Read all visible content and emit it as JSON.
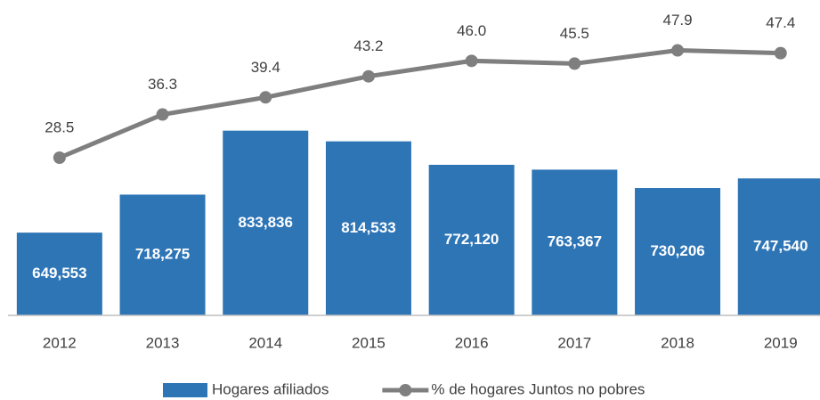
{
  "chart_data": {
    "type": "bar-line",
    "categories": [
      "2012",
      "2013",
      "2014",
      "2015",
      "2016",
      "2017",
      "2018",
      "2019"
    ],
    "series": [
      {
        "name": "Hogares afiliados",
        "type": "bar",
        "color": "#2e75b6",
        "values": [
          649553,
          718275,
          833836,
          814533,
          772120,
          763367,
          730206,
          747540
        ],
        "value_labels": [
          "649,553",
          "718,275",
          "833,836",
          "814,533",
          "772,120",
          "763,367",
          "730,206",
          "747,540"
        ]
      },
      {
        "name": "% de hogares Juntos no pobres",
        "type": "line",
        "axis": "y2",
        "color": "#7f7f7f",
        "values": [
          28.5,
          36.3,
          39.4,
          43.2,
          46.0,
          45.5,
          47.9,
          47.4
        ],
        "value_labels": [
          "28.5",
          "36.3",
          "39.4",
          "43.2",
          "46.0",
          "45.5",
          "47.9",
          "47.4"
        ]
      }
    ],
    "ylim": [
      500000,
      1070000
    ],
    "y2lim": [
      0,
      57
    ],
    "legend": "bottom"
  }
}
